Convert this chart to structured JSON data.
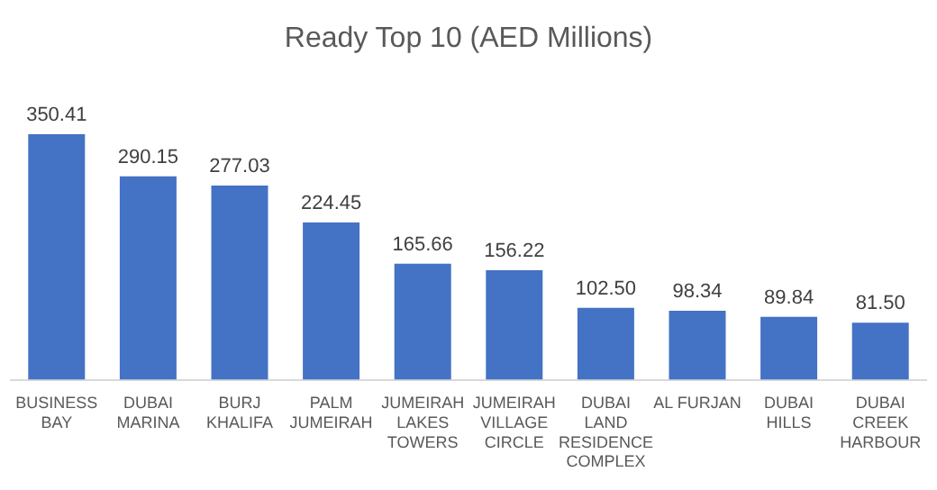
{
  "chart_data": {
    "type": "bar",
    "title": "Ready Top 10 (AED Millions)",
    "categories": [
      "BUSINESS BAY",
      "DUBAI MARINA",
      "BURJ KHALIFA",
      "PALM JUMEIRAH",
      "JUMEIRAH LAKES TOWERS",
      "JUMEIRAH VILLAGE CIRCLE",
      "DUBAI LAND RESIDENCE COMPLEX",
      "AL FURJAN",
      "DUBAI HILLS",
      "DUBAI CREEK HARBOUR"
    ],
    "values": [
      350.41,
      290.15,
      277.03,
      224.45,
      165.66,
      156.22,
      102.5,
      98.34,
      89.84,
      81.5
    ],
    "value_labels": [
      "350.41",
      "290.15",
      "277.03",
      "224.45",
      "165.66",
      "156.22",
      "102.50",
      "98.34",
      "89.84",
      "81.50"
    ],
    "color": "#4472c4",
    "grid": false,
    "legend": false,
    "tick_labels": "x"
  }
}
